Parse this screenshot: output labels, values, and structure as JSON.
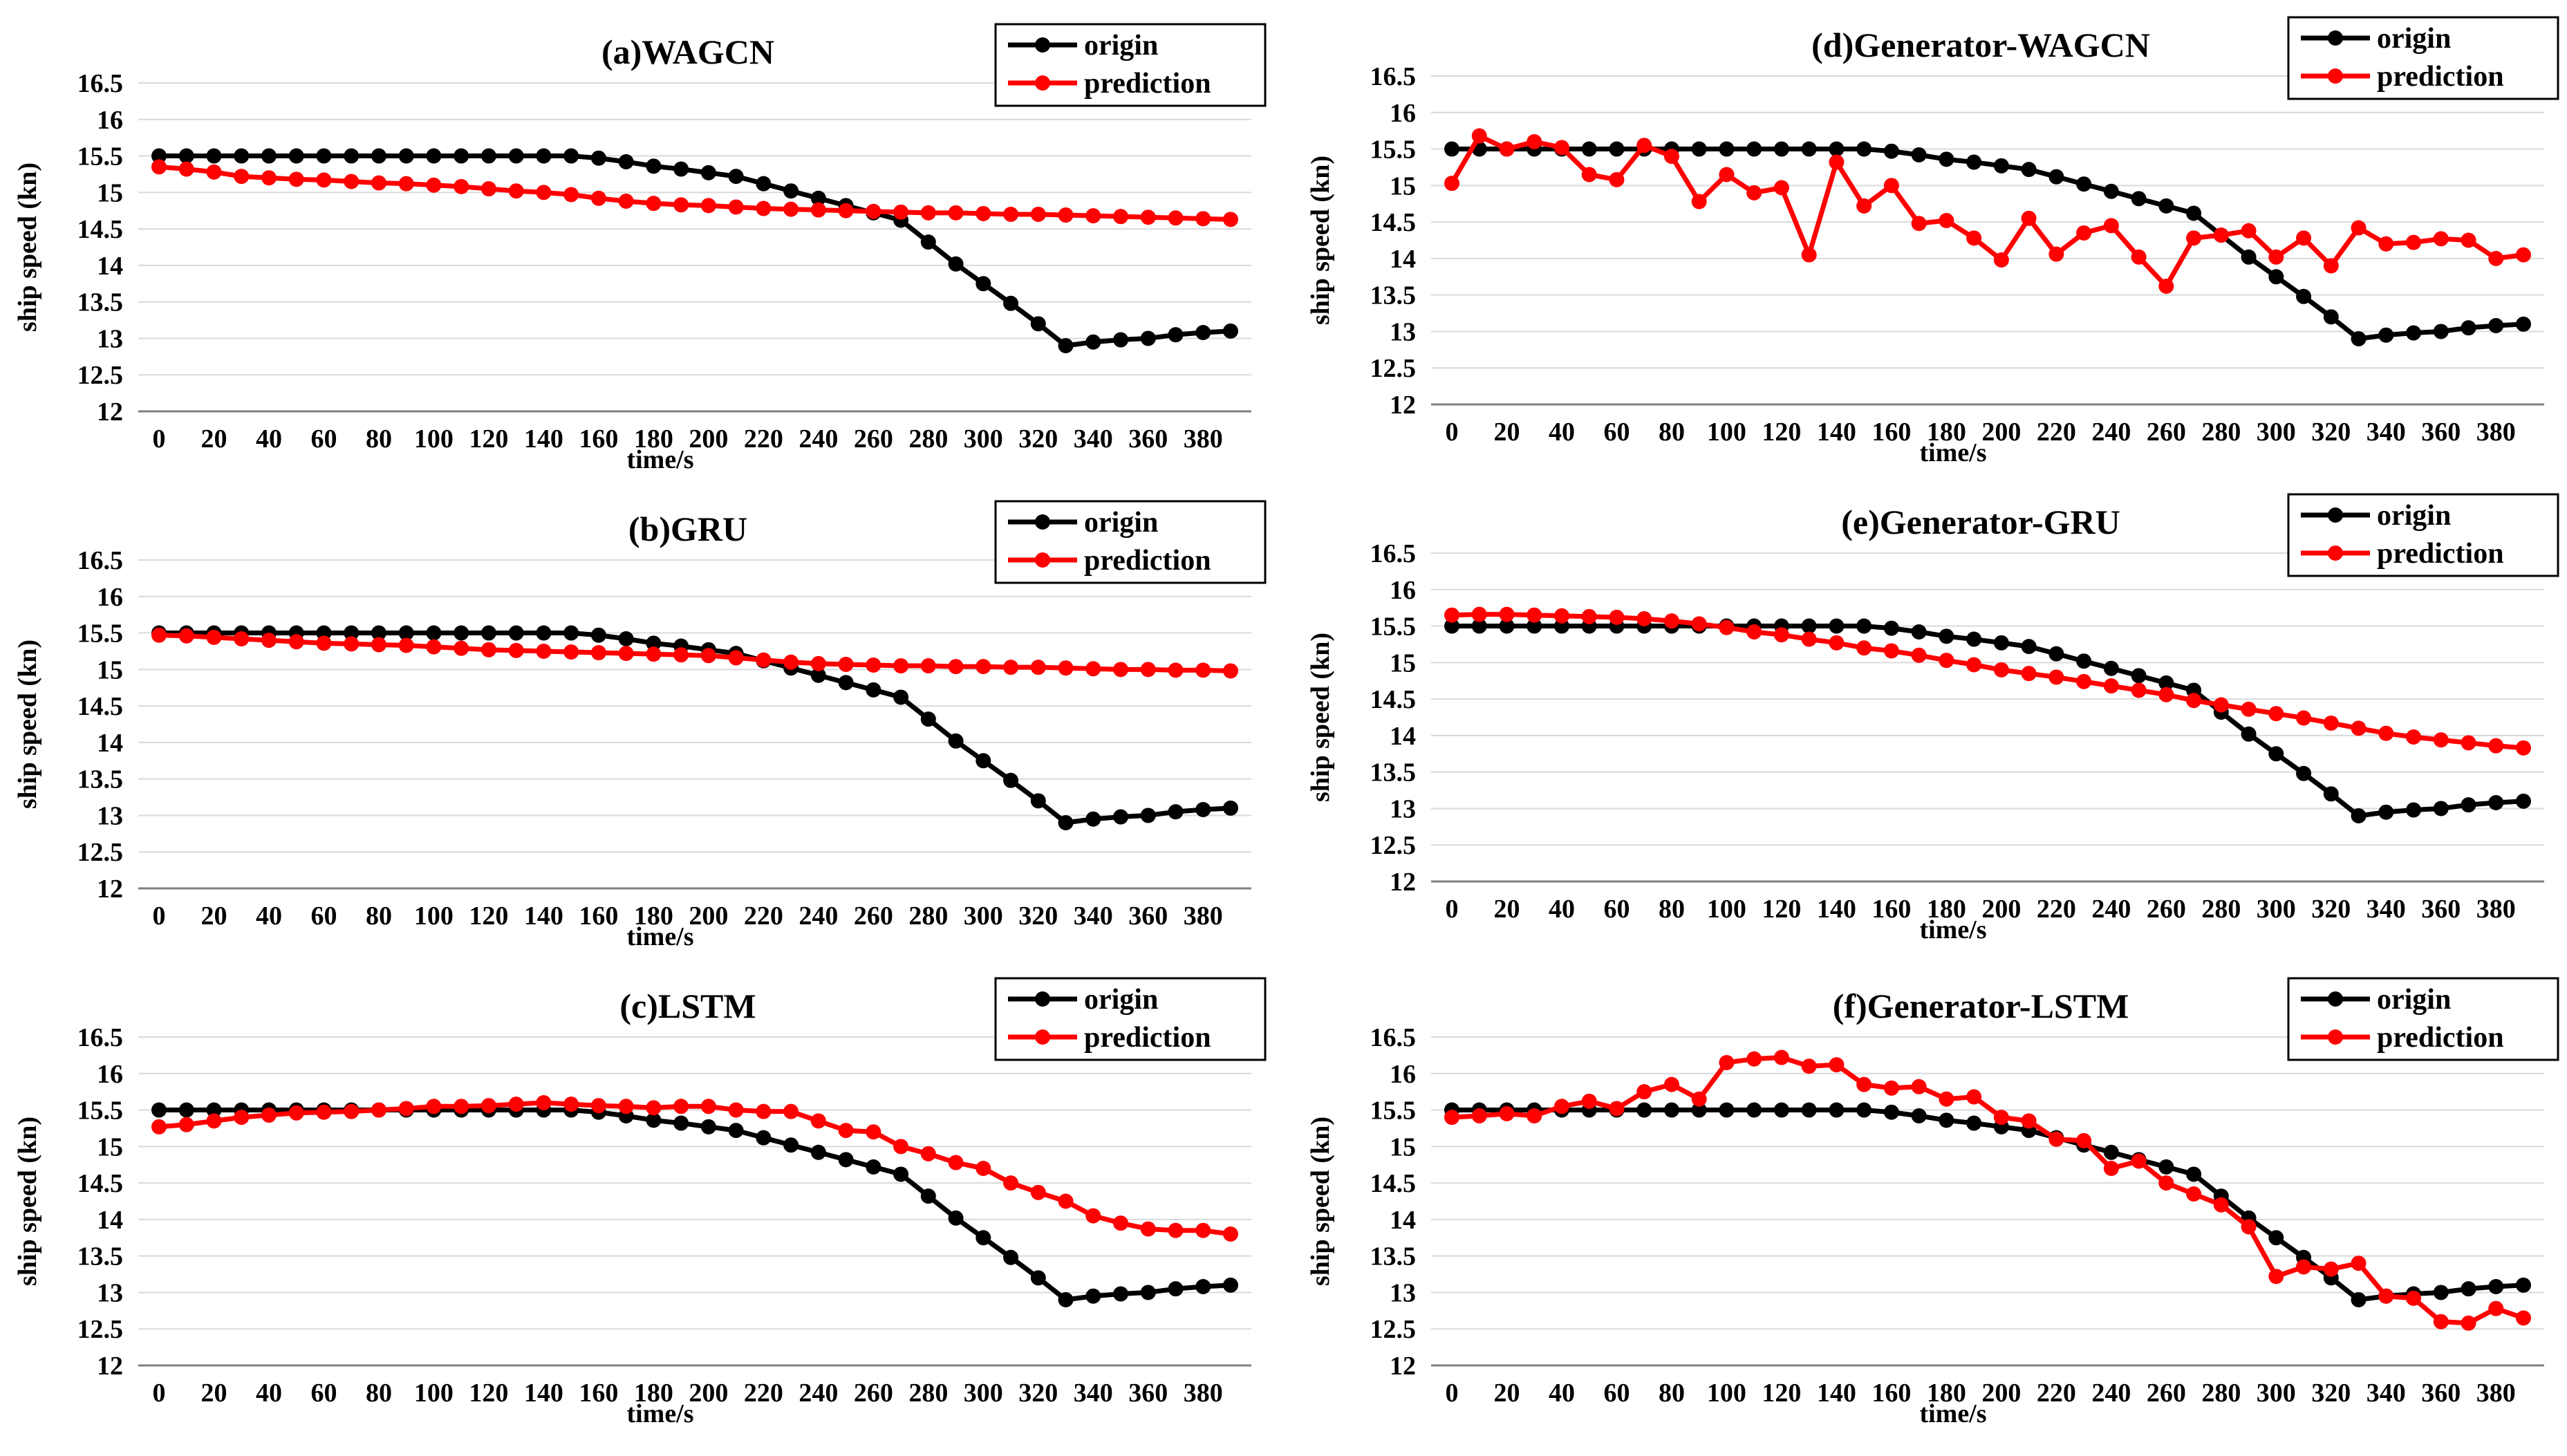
{
  "colors": {
    "origin": "#000000",
    "prediction": "#ff0000",
    "grid": "#d9d9d9",
    "axis": "#7f7f7f"
  },
  "chart_data": [
    {
      "type": "line",
      "title": "(a)WAGCN",
      "xlabel": "time/s",
      "ylabel": "ship speed (kn)",
      "ylim": [
        12,
        16.5
      ],
      "yticks": [
        "12",
        "12.5",
        "13",
        "13.5",
        "14",
        "14.5",
        "15",
        "15.5",
        "16",
        "16.5"
      ],
      "xticks": [
        "0",
        "20",
        "40",
        "60",
        "80",
        "100",
        "120",
        "140",
        "160",
        "180",
        "200",
        "220",
        "240",
        "260",
        "280",
        "300",
        "320",
        "340",
        "360",
        "380"
      ],
      "grid": "horizontal",
      "legend": "top-right",
      "x": [
        0,
        10,
        20,
        30,
        40,
        50,
        60,
        70,
        80,
        90,
        100,
        110,
        120,
        130,
        140,
        150,
        160,
        170,
        180,
        190,
        200,
        210,
        220,
        230,
        240,
        250,
        260,
        270,
        280,
        290,
        300,
        310,
        320,
        330,
        340,
        350,
        360,
        370,
        380,
        390
      ],
      "series": [
        {
          "name": "origin",
          "values": [
            15.5,
            15.5,
            15.5,
            15.5,
            15.5,
            15.5,
            15.5,
            15.5,
            15.5,
            15.5,
            15.5,
            15.5,
            15.5,
            15.5,
            15.5,
            15.5,
            15.47,
            15.42,
            15.36,
            15.32,
            15.27,
            15.22,
            15.12,
            15.02,
            14.92,
            14.82,
            14.72,
            14.62,
            14.32,
            14.02,
            13.75,
            13.48,
            13.2,
            12.9,
            12.95,
            12.98,
            13.0,
            13.05,
            13.08,
            13.1
          ]
        },
        {
          "name": "prediction",
          "values": [
            15.35,
            15.32,
            15.28,
            15.22,
            15.2,
            15.18,
            15.17,
            15.15,
            15.13,
            15.12,
            15.1,
            15.08,
            15.05,
            15.02,
            15.0,
            14.97,
            14.92,
            14.88,
            14.85,
            14.83,
            14.82,
            14.8,
            14.78,
            14.77,
            14.76,
            14.75,
            14.74,
            14.73,
            14.72,
            14.72,
            14.71,
            14.7,
            14.7,
            14.69,
            14.68,
            14.67,
            14.66,
            14.65,
            14.64,
            14.63
          ]
        }
      ]
    },
    {
      "type": "line",
      "title": "(b)GRU",
      "xlabel": "time/s",
      "ylabel": "ship speed (kn)",
      "ylim": [
        12,
        16.5
      ],
      "yticks": [
        "12",
        "12.5",
        "13",
        "13.5",
        "14",
        "14.5",
        "15",
        "15.5",
        "16",
        "16.5"
      ],
      "xticks": [
        "0",
        "20",
        "40",
        "60",
        "80",
        "100",
        "120",
        "140",
        "160",
        "180",
        "200",
        "220",
        "240",
        "260",
        "280",
        "300",
        "320",
        "340",
        "360",
        "380"
      ],
      "grid": "horizontal",
      "legend": "top-right",
      "x": [
        0,
        10,
        20,
        30,
        40,
        50,
        60,
        70,
        80,
        90,
        100,
        110,
        120,
        130,
        140,
        150,
        160,
        170,
        180,
        190,
        200,
        210,
        220,
        230,
        240,
        250,
        260,
        270,
        280,
        290,
        300,
        310,
        320,
        330,
        340,
        350,
        360,
        370,
        380,
        390
      ],
      "series": [
        {
          "name": "origin",
          "values": [
            15.5,
            15.5,
            15.5,
            15.5,
            15.5,
            15.5,
            15.5,
            15.5,
            15.5,
            15.5,
            15.5,
            15.5,
            15.5,
            15.5,
            15.5,
            15.5,
            15.47,
            15.42,
            15.36,
            15.32,
            15.27,
            15.22,
            15.12,
            15.02,
            14.92,
            14.82,
            14.72,
            14.62,
            14.32,
            14.02,
            13.75,
            13.48,
            13.2,
            12.9,
            12.95,
            12.98,
            13.0,
            13.05,
            13.08,
            13.1
          ]
        },
        {
          "name": "prediction",
          "values": [
            15.47,
            15.46,
            15.44,
            15.42,
            15.4,
            15.38,
            15.36,
            15.35,
            15.34,
            15.33,
            15.31,
            15.29,
            15.27,
            15.26,
            15.25,
            15.24,
            15.23,
            15.22,
            15.21,
            15.2,
            15.19,
            15.16,
            15.13,
            15.1,
            15.08,
            15.07,
            15.06,
            15.05,
            15.05,
            15.04,
            15.04,
            15.03,
            15.03,
            15.02,
            15.01,
            15.0,
            15.0,
            14.99,
            14.99,
            14.98
          ]
        }
      ]
    },
    {
      "type": "line",
      "title": "(c)LSTM",
      "xlabel": "time/s",
      "ylabel": "ship speed (kn)",
      "ylim": [
        12,
        16.5
      ],
      "yticks": [
        "12",
        "12.5",
        "13",
        "13.5",
        "14",
        "14.5",
        "15",
        "15.5",
        "16",
        "16.5"
      ],
      "xticks": [
        "0",
        "20",
        "40",
        "60",
        "80",
        "100",
        "120",
        "140",
        "160",
        "180",
        "200",
        "220",
        "240",
        "260",
        "280",
        "300",
        "320",
        "340",
        "360",
        "380"
      ],
      "grid": "horizontal",
      "legend": "top-right",
      "x": [
        0,
        10,
        20,
        30,
        40,
        50,
        60,
        70,
        80,
        90,
        100,
        110,
        120,
        130,
        140,
        150,
        160,
        170,
        180,
        190,
        200,
        210,
        220,
        230,
        240,
        250,
        260,
        270,
        280,
        290,
        300,
        310,
        320,
        330,
        340,
        350,
        360,
        370,
        380,
        390
      ],
      "series": [
        {
          "name": "origin",
          "values": [
            15.5,
            15.5,
            15.5,
            15.5,
            15.5,
            15.5,
            15.5,
            15.5,
            15.5,
            15.5,
            15.5,
            15.5,
            15.5,
            15.5,
            15.5,
            15.5,
            15.47,
            15.42,
            15.36,
            15.32,
            15.27,
            15.22,
            15.12,
            15.02,
            14.92,
            14.82,
            14.72,
            14.62,
            14.32,
            14.02,
            13.75,
            13.48,
            13.2,
            12.9,
            12.95,
            12.98,
            13.0,
            13.05,
            13.08,
            13.1
          ]
        },
        {
          "name": "prediction",
          "values": [
            15.27,
            15.3,
            15.35,
            15.4,
            15.43,
            15.46,
            15.47,
            15.48,
            15.5,
            15.52,
            15.55,
            15.55,
            15.56,
            15.58,
            15.6,
            15.58,
            15.56,
            15.55,
            15.53,
            15.55,
            15.55,
            15.5,
            15.48,
            15.48,
            15.35,
            15.22,
            15.2,
            15.0,
            14.9,
            14.78,
            14.7,
            14.5,
            14.37,
            14.25,
            14.05,
            13.95,
            13.87,
            13.85,
            13.85,
            13.8
          ]
        }
      ]
    },
    {
      "type": "line",
      "title": "(d)Generator-WAGCN",
      "xlabel": "time/s",
      "ylabel": "ship speed (kn)",
      "ylim": [
        12,
        16.5
      ],
      "yticks": [
        "12",
        "12.5",
        "13",
        "13.5",
        "14",
        "14.5",
        "15",
        "15.5",
        "16",
        "16.5"
      ],
      "xticks": [
        "0",
        "20",
        "40",
        "60",
        "80",
        "100",
        "120",
        "140",
        "160",
        "180",
        "200",
        "220",
        "240",
        "260",
        "280",
        "300",
        "320",
        "340",
        "360",
        "380"
      ],
      "grid": "horizontal",
      "legend": "top-right",
      "x": [
        0,
        10,
        20,
        30,
        40,
        50,
        60,
        70,
        80,
        90,
        100,
        110,
        120,
        130,
        140,
        150,
        160,
        170,
        180,
        190,
        200,
        210,
        220,
        230,
        240,
        250,
        260,
        270,
        280,
        290,
        300,
        310,
        320,
        330,
        340,
        350,
        360,
        370,
        380,
        390
      ],
      "series": [
        {
          "name": "origin",
          "values": [
            15.5,
            15.5,
            15.5,
            15.5,
            15.5,
            15.5,
            15.5,
            15.5,
            15.5,
            15.5,
            15.5,
            15.5,
            15.5,
            15.5,
            15.5,
            15.5,
            15.47,
            15.42,
            15.36,
            15.32,
            15.27,
            15.22,
            15.12,
            15.02,
            14.92,
            14.82,
            14.72,
            14.62,
            14.32,
            14.02,
            13.75,
            13.48,
            13.2,
            12.9,
            12.95,
            12.98,
            13.0,
            13.05,
            13.08,
            13.1
          ]
        },
        {
          "name": "prediction",
          "values": [
            15.03,
            15.68,
            15.5,
            15.6,
            15.52,
            15.15,
            15.08,
            15.55,
            15.4,
            14.78,
            15.15,
            14.9,
            14.97,
            14.05,
            15.32,
            14.72,
            15.0,
            14.48,
            14.52,
            14.28,
            13.98,
            14.55,
            14.06,
            14.35,
            14.45,
            14.02,
            13.62,
            14.28,
            14.32,
            14.38,
            14.02,
            14.28,
            13.9,
            14.42,
            14.2,
            14.22,
            14.27,
            14.25,
            14.0,
            14.05
          ]
        }
      ]
    },
    {
      "type": "line",
      "title": "(e)Generator-GRU",
      "xlabel": "time/s",
      "ylabel": "ship speed (kn)",
      "ylim": [
        12,
        16.5
      ],
      "yticks": [
        "12",
        "12.5",
        "13",
        "13.5",
        "14",
        "14.5",
        "15",
        "15.5",
        "16",
        "16.5"
      ],
      "xticks": [
        "0",
        "20",
        "40",
        "60",
        "80",
        "100",
        "120",
        "140",
        "160",
        "180",
        "200",
        "220",
        "240",
        "260",
        "280",
        "300",
        "320",
        "340",
        "360",
        "380"
      ],
      "grid": "horizontal",
      "legend": "top-right",
      "x": [
        0,
        10,
        20,
        30,
        40,
        50,
        60,
        70,
        80,
        90,
        100,
        110,
        120,
        130,
        140,
        150,
        160,
        170,
        180,
        190,
        200,
        210,
        220,
        230,
        240,
        250,
        260,
        270,
        280,
        290,
        300,
        310,
        320,
        330,
        340,
        350,
        360,
        370,
        380,
        390
      ],
      "series": [
        {
          "name": "origin",
          "values": [
            15.5,
            15.5,
            15.5,
            15.5,
            15.5,
            15.5,
            15.5,
            15.5,
            15.5,
            15.5,
            15.5,
            15.5,
            15.5,
            15.5,
            15.5,
            15.5,
            15.47,
            15.42,
            15.36,
            15.32,
            15.27,
            15.22,
            15.12,
            15.02,
            14.92,
            14.82,
            14.72,
            14.62,
            14.32,
            14.02,
            13.75,
            13.48,
            13.2,
            12.9,
            12.95,
            12.98,
            13.0,
            13.05,
            13.08,
            13.1
          ]
        },
        {
          "name": "prediction",
          "values": [
            15.65,
            15.66,
            15.66,
            15.65,
            15.64,
            15.63,
            15.62,
            15.6,
            15.57,
            15.53,
            15.48,
            15.42,
            15.38,
            15.32,
            15.27,
            15.2,
            15.16,
            15.1,
            15.03,
            14.97,
            14.9,
            14.85,
            14.8,
            14.74,
            14.68,
            14.62,
            14.56,
            14.48,
            14.42,
            14.36,
            14.3,
            14.24,
            14.17,
            14.1,
            14.03,
            13.98,
            13.94,
            13.9,
            13.86,
            13.83
          ]
        }
      ]
    },
    {
      "type": "line",
      "title": "(f)Generator-LSTM",
      "xlabel": "time/s",
      "ylabel": "ship speed (kn)",
      "ylim": [
        12,
        16.5
      ],
      "yticks": [
        "12",
        "12.5",
        "13",
        "13.5",
        "14",
        "14.5",
        "15",
        "15.5",
        "16",
        "16.5"
      ],
      "xticks": [
        "0",
        "20",
        "40",
        "60",
        "80",
        "100",
        "120",
        "140",
        "160",
        "180",
        "200",
        "220",
        "240",
        "260",
        "280",
        "300",
        "320",
        "340",
        "360",
        "380"
      ],
      "grid": "horizontal",
      "legend": "top-right",
      "x": [
        0,
        10,
        20,
        30,
        40,
        50,
        60,
        70,
        80,
        90,
        100,
        110,
        120,
        130,
        140,
        150,
        160,
        170,
        180,
        190,
        200,
        210,
        220,
        230,
        240,
        250,
        260,
        270,
        280,
        290,
        300,
        310,
        320,
        330,
        340,
        350,
        360,
        370,
        380,
        390
      ],
      "series": [
        {
          "name": "origin",
          "values": [
            15.5,
            15.5,
            15.5,
            15.5,
            15.5,
            15.5,
            15.5,
            15.5,
            15.5,
            15.5,
            15.5,
            15.5,
            15.5,
            15.5,
            15.5,
            15.5,
            15.47,
            15.42,
            15.36,
            15.32,
            15.27,
            15.22,
            15.12,
            15.02,
            14.92,
            14.82,
            14.72,
            14.62,
            14.32,
            14.02,
            13.75,
            13.48,
            13.2,
            12.9,
            12.95,
            12.98,
            13.0,
            13.05,
            13.08,
            13.1
          ]
        },
        {
          "name": "prediction",
          "values": [
            15.4,
            15.42,
            15.45,
            15.42,
            15.55,
            15.62,
            15.52,
            15.75,
            15.85,
            15.65,
            16.15,
            16.2,
            16.22,
            16.1,
            16.12,
            15.85,
            15.8,
            15.82,
            15.65,
            15.68,
            15.4,
            15.35,
            15.1,
            15.08,
            14.7,
            14.8,
            14.5,
            14.35,
            14.2,
            13.9,
            13.22,
            13.35,
            13.32,
            13.4,
            12.95,
            12.92,
            12.6,
            12.58,
            12.78,
            12.65
          ]
        }
      ]
    }
  ]
}
